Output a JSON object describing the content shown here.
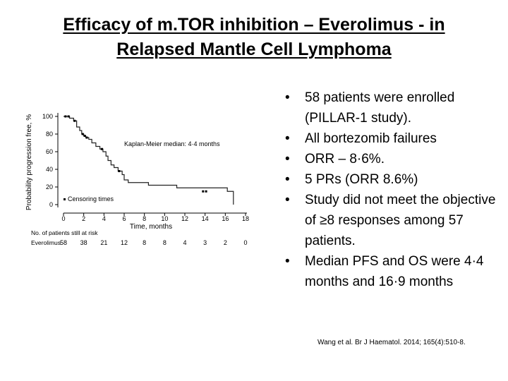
{
  "slide": {
    "title_line1": "Efficacy of m.TOR inhibition – Everolimus - in",
    "title_line2": "Relapsed Mantle Cell Lymphoma",
    "bullets": [
      "58 patients were enrolled (PILLAR-1 study).",
      "All bortezomib failures",
      "ORR – 8·6%.",
      "5 PRs (ORR 8.6%)",
      "Study did not meet the objective of ≥8 responses among 57 patients.",
      "Median PFS and OS were 4·4 months and 16·9 months"
    ],
    "bullet_symbol": "•",
    "citation": "Wang et al. Br J Haematol. 2014; 165(4):510-8."
  },
  "chart_data": {
    "type": "line",
    "xlabel": "Time, months",
    "ylabel": "Probability progression free, %",
    "xlim": [
      0,
      18
    ],
    "ylim": [
      0,
      100
    ],
    "xticks": [
      "0",
      "2",
      "4",
      "6",
      "8",
      "10",
      "12",
      "14",
      "16",
      "18"
    ],
    "yticks": [
      "0",
      "20",
      "40",
      "60",
      "80",
      "100"
    ],
    "annotation": "Kaplan-Meier median: 4·4 months",
    "legend_label": "Censoring times",
    "risk_table_header": "No. of patients still at risk",
    "risk_table_row_label": "Everolimus",
    "risk_table_values": [
      "58",
      "38",
      "21",
      "12",
      "8",
      "8",
      "4",
      "3",
      "2",
      "0"
    ],
    "series": [
      {
        "x": [
          0,
          0.3,
          0.6,
          1.0,
          1.3,
          1.6,
          1.8,
          2.0,
          2.2,
          2.5,
          2.8,
          3.2,
          3.6,
          3.9,
          4.2,
          4.4,
          4.7,
          5.0,
          5.4,
          5.8,
          6.0,
          6.4,
          8.4,
          11.2,
          16.2,
          16.8
        ],
        "y": [
          100,
          100,
          98,
          95,
          88,
          84,
          80,
          78,
          76,
          74,
          70,
          66,
          63,
          60,
          55,
          50,
          45,
          42,
          38,
          34,
          28,
          25,
          22,
          19,
          15,
          0
        ]
      }
    ],
    "censoring_points": [
      {
        "x": 0.2,
        "y": 100
      },
      {
        "x": 0.5,
        "y": 100
      },
      {
        "x": 1.1,
        "y": 95
      },
      {
        "x": 1.9,
        "y": 80
      },
      {
        "x": 2.1,
        "y": 78
      },
      {
        "x": 2.3,
        "y": 76
      },
      {
        "x": 3.8,
        "y": 63
      },
      {
        "x": 5.5,
        "y": 38
      },
      {
        "x": 13.8,
        "y": 15
      },
      {
        "x": 14.1,
        "y": 15
      }
    ]
  }
}
